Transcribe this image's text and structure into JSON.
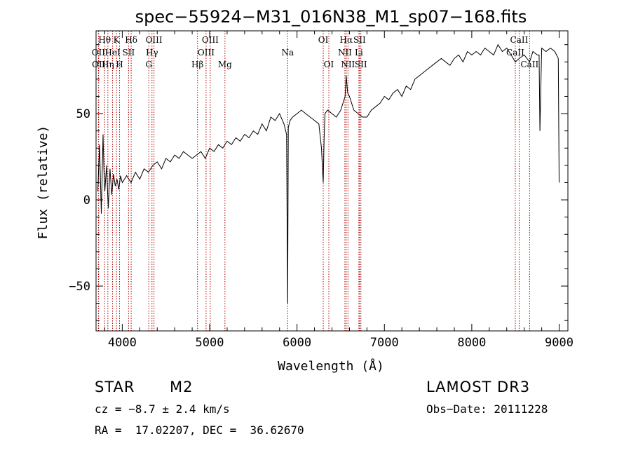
{
  "chart_data": {
    "type": "line",
    "title": "spec−55924−M31_016N38_M1_sp07−168.fits",
    "xlabel": "Wavelength (Å)",
    "ylabel": "Flux (relative)",
    "xlim": [
      3700,
      9100
    ],
    "ylim": [
      -76,
      98
    ],
    "xticks": [
      4000,
      5000,
      6000,
      7000,
      8000,
      9000
    ],
    "xtick_labels": [
      "4000",
      "5000",
      "6000",
      "7000",
      "8000",
      "9000"
    ],
    "yticks": [
      -50,
      0,
      50
    ],
    "ytick_labels": [
      "−50",
      "0",
      "50"
    ],
    "series": [
      {
        "name": "spectrum",
        "x": [
          3720,
          3740,
          3760,
          3780,
          3790,
          3800,
          3820,
          3840,
          3860,
          3880,
          3900,
          3920,
          3940,
          3960,
          3980,
          4000,
          4050,
          4100,
          4150,
          4200,
          4250,
          4300,
          4350,
          4400,
          4450,
          4500,
          4550,
          4600,
          4650,
          4700,
          4750,
          4800,
          4850,
          4900,
          4950,
          5000,
          5050,
          5100,
          5150,
          5200,
          5250,
          5300,
          5350,
          5400,
          5450,
          5500,
          5550,
          5600,
          5650,
          5700,
          5750,
          5800,
          5850,
          5880,
          5893,
          5900,
          5920,
          5950,
          6000,
          6050,
          6100,
          6150,
          6200,
          6250,
          6280,
          6300,
          6310,
          6320,
          6350,
          6400,
          6450,
          6500,
          6550,
          6563,
          6580,
          6600,
          6650,
          6700,
          6750,
          6800,
          6850,
          6900,
          6950,
          7000,
          7050,
          7100,
          7150,
          7200,
          7250,
          7300,
          7350,
          7400,
          7450,
          7500,
          7550,
          7600,
          7650,
          7700,
          7750,
          7800,
          7850,
          7900,
          7950,
          8000,
          8050,
          8100,
          8150,
          8200,
          8250,
          8300,
          8350,
          8400,
          8450,
          8498,
          8542,
          8600,
          8662,
          8700,
          8750,
          8770,
          8780,
          8800,
          8850,
          8900,
          8950,
          8990,
          9000
        ],
        "values": [
          5,
          32,
          -8,
          38,
          18,
          5,
          20,
          -5,
          18,
          3,
          15,
          8,
          12,
          6,
          14,
          10,
          14,
          10,
          16,
          12,
          18,
          16,
          20,
          22,
          18,
          24,
          22,
          26,
          24,
          28,
          26,
          24,
          26,
          28,
          24,
          30,
          28,
          32,
          30,
          34,
          32,
          36,
          34,
          38,
          36,
          40,
          38,
          44,
          40,
          48,
          46,
          50,
          44,
          38,
          -60,
          42,
          46,
          48,
          50,
          52,
          50,
          48,
          46,
          44,
          30,
          10,
          36,
          50,
          52,
          50,
          48,
          52,
          60,
          72,
          62,
          60,
          52,
          50,
          48,
          48,
          52,
          54,
          56,
          60,
          58,
          62,
          64,
          60,
          66,
          64,
          70,
          72,
          74,
          76,
          78,
          80,
          82,
          80,
          78,
          82,
          84,
          80,
          86,
          84,
          86,
          84,
          88,
          86,
          84,
          90,
          86,
          88,
          84,
          80,
          82,
          84,
          80,
          86,
          84,
          84,
          40,
          88,
          86,
          88,
          86,
          82,
          10
        ]
      }
    ],
    "line_annotations": [
      {
        "label": "Hθ",
        "x": 3798,
        "row": 0
      },
      {
        "label": "OII",
        "x": 3727,
        "row": 1
      },
      {
        "label": "OII",
        "x": 3730,
        "row": 2
      },
      {
        "label": "Hη",
        "x": 3835,
        "row": 2
      },
      {
        "label": "HeI",
        "x": 3889,
        "row": 1
      },
      {
        "label": "K",
        "x": 3934,
        "row": 0
      },
      {
        "label": "H",
        "x": 3969,
        "row": 2
      },
      {
        "label": "SII",
        "x": 4072,
        "row": 1
      },
      {
        "label": "Hδ",
        "x": 4102,
        "row": 0
      },
      {
        "label": "OIII",
        "x": 4363,
        "row": 0
      },
      {
        "label": "Hγ",
        "x": 4340,
        "row": 1
      },
      {
        "label": "G",
        "x": 4304,
        "row": 2
      },
      {
        "label": "Hβ",
        "x": 4861,
        "row": 2
      },
      {
        "label": "OIII",
        "x": 4959,
        "row": 1
      },
      {
        "label": "OIII",
        "x": 5007,
        "row": 0
      },
      {
        "label": "Mg",
        "x": 5175,
        "row": 2
      },
      {
        "label": "Na",
        "x": 5893,
        "row": 1
      },
      {
        "label": "OI",
        "x": 6300,
        "row": 0
      },
      {
        "label": "OI",
        "x": 6364,
        "row": 2
      },
      {
        "label": "Hα",
        "x": 6563,
        "row": 0
      },
      {
        "label": "NII",
        "x": 6548,
        "row": 1
      },
      {
        "label": "NII",
        "x": 6583,
        "row": 2
      },
      {
        "label": "SII",
        "x": 6716,
        "row": 0
      },
      {
        "label": "Li",
        "x": 6708,
        "row": 1
      },
      {
        "label": "SII",
        "x": 6731,
        "row": 2
      },
      {
        "label": "CaII",
        "x": 8542,
        "row": 0
      },
      {
        "label": "CaII",
        "x": 8498,
        "row": 1
      },
      {
        "label": "CaII",
        "x": 8662,
        "row": 2
      }
    ]
  },
  "object_info": {
    "class": "STAR",
    "subclass": "M2",
    "survey": "LAMOST DR3",
    "cz_line": "cz = −8.7 ± 2.4 km/s",
    "obs_date_line": "Obs−Date: 20111228",
    "coords_line": "RA =  17.02207, DEC =  36.62670"
  },
  "colors": {
    "spectrum": "#000000",
    "line_markers": "#b00000",
    "axes": "#000000"
  }
}
